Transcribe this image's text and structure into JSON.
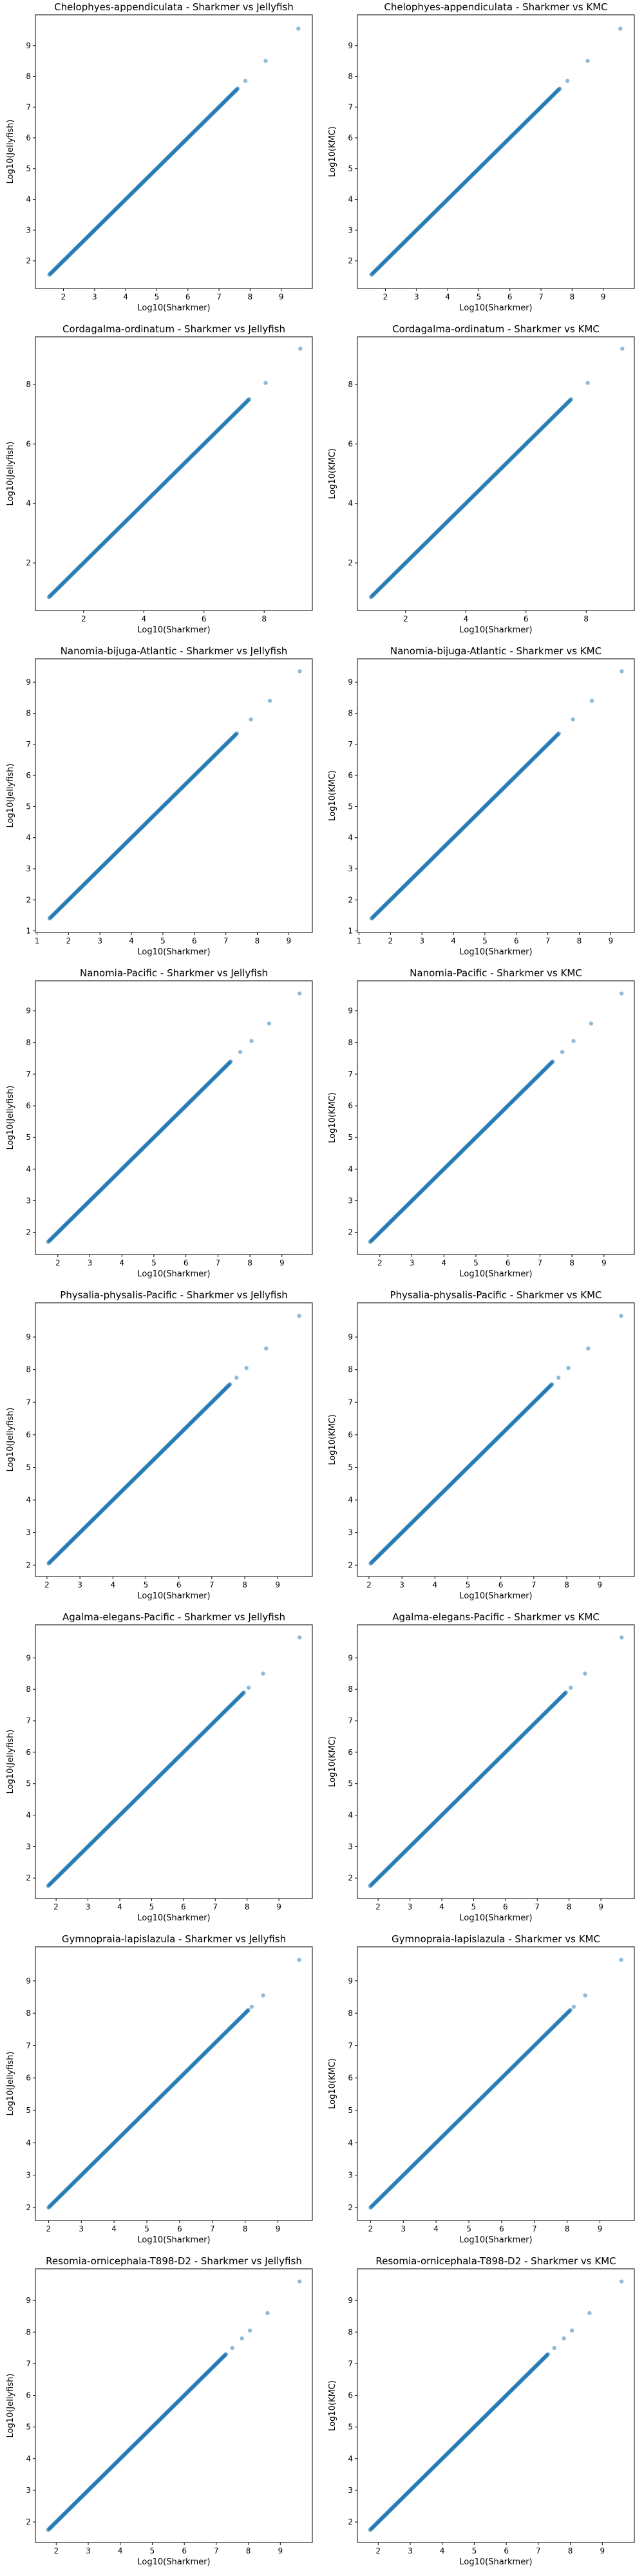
{
  "figure": {
    "background": "#ffffff"
  },
  "style": {
    "point_color": "#1f77b4",
    "point_alpha": 0.5,
    "axis_color": "#000000"
  },
  "chart_data": [
    {
      "type": "scatter",
      "title": "Chelophyes-appendiculata - Sharkmer vs Jellyfish",
      "xlabel": "Log10(Sharkmer)",
      "ylabel": "Log10(Jellyfish)",
      "xlim": [
        1.1,
        10.0
      ],
      "ylim": [
        1.1,
        10.0
      ],
      "xticks": [
        2,
        3,
        4,
        5,
        6,
        7,
        8,
        9
      ],
      "yticks": [
        2,
        3,
        4,
        5,
        6,
        7,
        8,
        9
      ],
      "grid": false,
      "line_range": [
        1.55,
        7.6
      ],
      "outliers": [
        [
          7.85,
          7.85
        ],
        [
          8.5,
          8.5
        ],
        [
          9.55,
          9.55
        ]
      ]
    },
    {
      "type": "scatter",
      "title": "Chelophyes-appendiculata - Sharkmer vs KMC",
      "xlabel": "Log10(Sharkmer)",
      "ylabel": "Log10(KMC)",
      "xlim": [
        1.1,
        10.0
      ],
      "ylim": [
        1.1,
        10.0
      ],
      "xticks": [
        2,
        3,
        4,
        5,
        6,
        7,
        8,
        9
      ],
      "yticks": [
        2,
        3,
        4,
        5,
        6,
        7,
        8,
        9
      ],
      "grid": false,
      "line_range": [
        1.55,
        7.6
      ],
      "outliers": [
        [
          7.85,
          7.85
        ],
        [
          8.5,
          8.5
        ],
        [
          9.55,
          9.55
        ]
      ]
    },
    {
      "type": "scatter",
      "title": "Cordagalma-ordinatum - Sharkmer vs Jellyfish",
      "xlabel": "Log10(Sharkmer)",
      "ylabel": "Log10(Jellyfish)",
      "xlim": [
        0.4,
        9.6
      ],
      "ylim": [
        0.4,
        9.6
      ],
      "xticks": [
        2,
        4,
        6,
        8
      ],
      "yticks": [
        2,
        4,
        6,
        8
      ],
      "grid": false,
      "line_range": [
        0.85,
        7.5
      ],
      "outliers": [
        [
          8.05,
          8.05
        ],
        [
          9.2,
          9.2
        ]
      ]
    },
    {
      "type": "scatter",
      "title": "Cordagalma-ordinatum - Sharkmer vs KMC",
      "xlabel": "Log10(Sharkmer)",
      "ylabel": "Log10(KMC)",
      "xlim": [
        0.4,
        9.6
      ],
      "ylim": [
        0.4,
        9.6
      ],
      "xticks": [
        2,
        4,
        6,
        8
      ],
      "yticks": [
        2,
        4,
        6,
        8
      ],
      "grid": false,
      "line_range": [
        0.85,
        7.5
      ],
      "outliers": [
        [
          8.05,
          8.05
        ],
        [
          9.2,
          9.2
        ]
      ]
    },
    {
      "type": "scatter",
      "title": "Nanomia-bijuga-Atlantic - Sharkmer vs Jellyfish",
      "xlabel": "Log10(Sharkmer)",
      "ylabel": "Log10(Jellyfish)",
      "xlim": [
        0.95,
        9.75
      ],
      "ylim": [
        0.95,
        9.75
      ],
      "xticks": [
        1,
        2,
        3,
        4,
        5,
        6,
        7,
        8,
        9
      ],
      "yticks": [
        1,
        2,
        3,
        4,
        5,
        6,
        7,
        8,
        9
      ],
      "grid": false,
      "line_range": [
        1.4,
        7.35
      ],
      "outliers": [
        [
          7.8,
          7.8
        ],
        [
          8.4,
          8.4
        ],
        [
          9.35,
          9.35
        ]
      ]
    },
    {
      "type": "scatter",
      "title": "Nanomia-bijuga-Atlantic - Sharkmer vs KMC",
      "xlabel": "Log10(Sharkmer)",
      "ylabel": "Log10(KMC)",
      "xlim": [
        0.95,
        9.75
      ],
      "ylim": [
        0.95,
        9.75
      ],
      "xticks": [
        1,
        2,
        3,
        4,
        5,
        6,
        7,
        8,
        9
      ],
      "yticks": [
        1,
        2,
        3,
        4,
        5,
        6,
        7,
        8,
        9
      ],
      "grid": false,
      "line_range": [
        1.4,
        7.35
      ],
      "outliers": [
        [
          7.8,
          7.8
        ],
        [
          8.4,
          8.4
        ],
        [
          9.35,
          9.35
        ]
      ]
    },
    {
      "type": "scatter",
      "title": "Nanomia-Pacific - Sharkmer vs Jellyfish",
      "xlabel": "Log10(Sharkmer)",
      "ylabel": "Log10(Jellyfish)",
      "xlim": [
        1.3,
        9.95
      ],
      "ylim": [
        1.3,
        9.95
      ],
      "xticks": [
        2,
        3,
        4,
        5,
        6,
        7,
        8,
        9
      ],
      "yticks": [
        2,
        3,
        4,
        5,
        6,
        7,
        8,
        9
      ],
      "grid": false,
      "line_range": [
        1.7,
        7.4
      ],
      "outliers": [
        [
          7.7,
          7.7
        ],
        [
          8.05,
          8.05
        ],
        [
          8.6,
          8.6
        ],
        [
          9.55,
          9.55
        ]
      ]
    },
    {
      "type": "scatter",
      "title": "Nanomia-Pacific - Sharkmer vs KMC",
      "xlabel": "Log10(Sharkmer)",
      "ylabel": "Log10(KMC)",
      "xlim": [
        1.3,
        9.95
      ],
      "ylim": [
        1.3,
        9.95
      ],
      "xticks": [
        2,
        3,
        4,
        5,
        6,
        7,
        8,
        9
      ],
      "yticks": [
        2,
        3,
        4,
        5,
        6,
        7,
        8,
        9
      ],
      "grid": false,
      "line_range": [
        1.7,
        7.4
      ],
      "outliers": [
        [
          7.7,
          7.7
        ],
        [
          8.05,
          8.05
        ],
        [
          8.6,
          8.6
        ],
        [
          9.55,
          9.55
        ]
      ]
    },
    {
      "type": "scatter",
      "title": "Physalia-physalis-Pacific - Sharkmer vs Jellyfish",
      "xlabel": "Log10(Sharkmer)",
      "ylabel": "Log10(Jellyfish)",
      "xlim": [
        1.65,
        10.05
      ],
      "ylim": [
        1.65,
        10.05
      ],
      "xticks": [
        2,
        3,
        4,
        5,
        6,
        7,
        8,
        9
      ],
      "yticks": [
        2,
        3,
        4,
        5,
        6,
        7,
        8,
        9
      ],
      "grid": false,
      "line_range": [
        2.05,
        7.55
      ],
      "outliers": [
        [
          7.75,
          7.75
        ],
        [
          8.05,
          8.05
        ],
        [
          8.65,
          8.65
        ],
        [
          9.65,
          9.65
        ]
      ]
    },
    {
      "type": "scatter",
      "title": "Physalia-physalis-Pacific - Sharkmer vs KMC",
      "xlabel": "Log10(Sharkmer)",
      "ylabel": "Log10(KMC)",
      "xlim": [
        1.65,
        10.05
      ],
      "ylim": [
        1.65,
        10.05
      ],
      "xticks": [
        2,
        3,
        4,
        5,
        6,
        7,
        8,
        9
      ],
      "yticks": [
        2,
        3,
        4,
        5,
        6,
        7,
        8,
        9
      ],
      "grid": false,
      "line_range": [
        2.05,
        7.55
      ],
      "outliers": [
        [
          7.75,
          7.75
        ],
        [
          8.05,
          8.05
        ],
        [
          8.65,
          8.65
        ],
        [
          9.65,
          9.65
        ]
      ]
    },
    {
      "type": "scatter",
      "title": "Agalma-elegans-Pacific - Sharkmer vs Jellyfish",
      "xlabel": "Log10(Sharkmer)",
      "ylabel": "Log10(Jellyfish)",
      "xlim": [
        1.35,
        10.05
      ],
      "ylim": [
        1.35,
        10.05
      ],
      "xticks": [
        2,
        3,
        4,
        5,
        6,
        7,
        8,
        9
      ],
      "yticks": [
        2,
        3,
        4,
        5,
        6,
        7,
        8,
        9
      ],
      "grid": false,
      "line_range": [
        1.75,
        7.9
      ],
      "outliers": [
        [
          8.05,
          8.05
        ],
        [
          8.5,
          8.5
        ],
        [
          9.65,
          9.65
        ]
      ]
    },
    {
      "type": "scatter",
      "title": "Agalma-elegans-Pacific - Sharkmer vs KMC",
      "xlabel": "Log10(Sharkmer)",
      "ylabel": "Log10(KMC)",
      "xlim": [
        1.35,
        10.05
      ],
      "ylim": [
        1.35,
        10.05
      ],
      "xticks": [
        2,
        3,
        4,
        5,
        6,
        7,
        8,
        9
      ],
      "yticks": [
        2,
        3,
        4,
        5,
        6,
        7,
        8,
        9
      ],
      "grid": false,
      "line_range": [
        1.75,
        7.9
      ],
      "outliers": [
        [
          8.05,
          8.05
        ],
        [
          8.5,
          8.5
        ],
        [
          9.65,
          9.65
        ]
      ]
    },
    {
      "type": "scatter",
      "title": "Gymnopraia-lapislazula - Sharkmer vs Jellyfish",
      "xlabel": "Log10(Sharkmer)",
      "ylabel": "Log10(Jellyfish)",
      "xlim": [
        1.6,
        10.05
      ],
      "ylim": [
        1.6,
        10.05
      ],
      "xticks": [
        2,
        3,
        4,
        5,
        6,
        7,
        8,
        9
      ],
      "yticks": [
        2,
        3,
        4,
        5,
        6,
        7,
        8,
        9
      ],
      "grid": false,
      "line_range": [
        2.0,
        8.1
      ],
      "outliers": [
        [
          8.2,
          8.2
        ],
        [
          8.55,
          8.55
        ],
        [
          9.65,
          9.65
        ]
      ]
    },
    {
      "type": "scatter",
      "title": "Gymnopraia-lapislazula - Sharkmer vs KMC",
      "xlabel": "Log10(Sharkmer)",
      "ylabel": "Log10(KMC)",
      "xlim": [
        1.6,
        10.05
      ],
      "ylim": [
        1.6,
        10.05
      ],
      "xticks": [
        2,
        3,
        4,
        5,
        6,
        7,
        8,
        9
      ],
      "yticks": [
        2,
        3,
        4,
        5,
        6,
        7,
        8,
        9
      ],
      "grid": false,
      "line_range": [
        2.0,
        8.1
      ],
      "outliers": [
        [
          8.2,
          8.2
        ],
        [
          8.55,
          8.55
        ],
        [
          9.65,
          9.65
        ]
      ]
    },
    {
      "type": "scatter",
      "title": "Resomia-ornicephala-T898-D2 - Sharkmer vs Jellyfish",
      "xlabel": "Log10(Sharkmer)",
      "ylabel": "Log10(Jellyfish)",
      "xlim": [
        1.35,
        10.0
      ],
      "ylim": [
        1.35,
        10.0
      ],
      "xticks": [
        2,
        3,
        4,
        5,
        6,
        7,
        8,
        9
      ],
      "yticks": [
        2,
        3,
        4,
        5,
        6,
        7,
        8,
        9
      ],
      "grid": false,
      "line_range": [
        1.75,
        7.3
      ],
      "outliers": [
        [
          7.5,
          7.5
        ],
        [
          7.8,
          7.8
        ],
        [
          8.05,
          8.05
        ],
        [
          8.6,
          8.6
        ],
        [
          9.6,
          9.6
        ]
      ]
    },
    {
      "type": "scatter",
      "title": "Resomia-ornicephala-T898-D2 - Sharkmer vs KMC",
      "xlabel": "Log10(Sharkmer)",
      "ylabel": "Log10(KMC)",
      "xlim": [
        1.35,
        10.0
      ],
      "ylim": [
        1.35,
        10.0
      ],
      "xticks": [
        2,
        3,
        4,
        5,
        6,
        7,
        8,
        9
      ],
      "yticks": [
        2,
        3,
        4,
        5,
        6,
        7,
        8,
        9
      ],
      "grid": false,
      "line_range": [
        1.75,
        7.3
      ],
      "outliers": [
        [
          7.5,
          7.5
        ],
        [
          7.8,
          7.8
        ],
        [
          8.05,
          8.05
        ],
        [
          8.6,
          8.6
        ],
        [
          9.6,
          9.6
        ]
      ]
    }
  ]
}
